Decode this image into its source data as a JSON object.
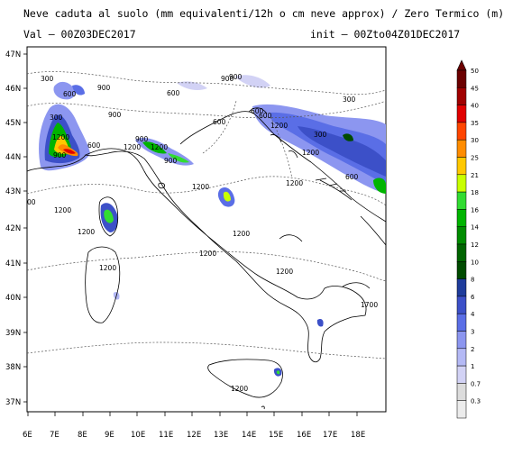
{
  "header": {
    "title": "Neve caduta al suolo (mm equivalenti/12h o cm neve approx) / Zero Termico (m)",
    "valid": "Val — 00Z03DEC2017",
    "init": "init — 00Zto04Z01DEC2017"
  },
  "axes": {
    "lat_labels": [
      "47N",
      "46N",
      "45N",
      "44N",
      "43N",
      "42N",
      "41N",
      "40N",
      "39N",
      "38N",
      "37N"
    ],
    "lon_labels": [
      "6E",
      "7E",
      "8E",
      "9E",
      "10E",
      "11E",
      "12E",
      "13E",
      "14E",
      "15E",
      "16E",
      "17E",
      "18E"
    ]
  },
  "legend": {
    "levels": [
      "50",
      "45",
      "40",
      "35",
      "30",
      "25",
      "21",
      "18",
      "16",
      "14",
      "12",
      "10",
      "8",
      "6",
      "4",
      "3",
      "2",
      "1",
      "0.7",
      "0.3"
    ],
    "colors": [
      "#6b0000",
      "#a00000",
      "#e00000",
      "#ff4500",
      "#ff8c00",
      "#ffc800",
      "#c8ff00",
      "#32dc32",
      "#00b400",
      "#008c00",
      "#006400",
      "#004b00",
      "#1e3c9b",
      "#3c50c8",
      "#5a6ee6",
      "#8c96f0",
      "#b4b9f5",
      "#d2d2f5",
      "#dcdcdc",
      "#ececec"
    ]
  },
  "contours": {
    "labels": [
      "300",
      "600",
      "900",
      "900",
      "600",
      "300",
      "900",
      "600",
      "1200",
      "600",
      "1200",
      "1200",
      "900",
      "1200",
      "1200",
      "1200",
      "1200",
      "1200",
      "1200",
      "1200",
      "1200",
      "1200",
      "1700",
      "300",
      "300",
      "900",
      "600",
      "600",
      "00",
      "1200",
      "900",
      "600",
      "1200",
      "900",
      "1200"
    ]
  }
}
